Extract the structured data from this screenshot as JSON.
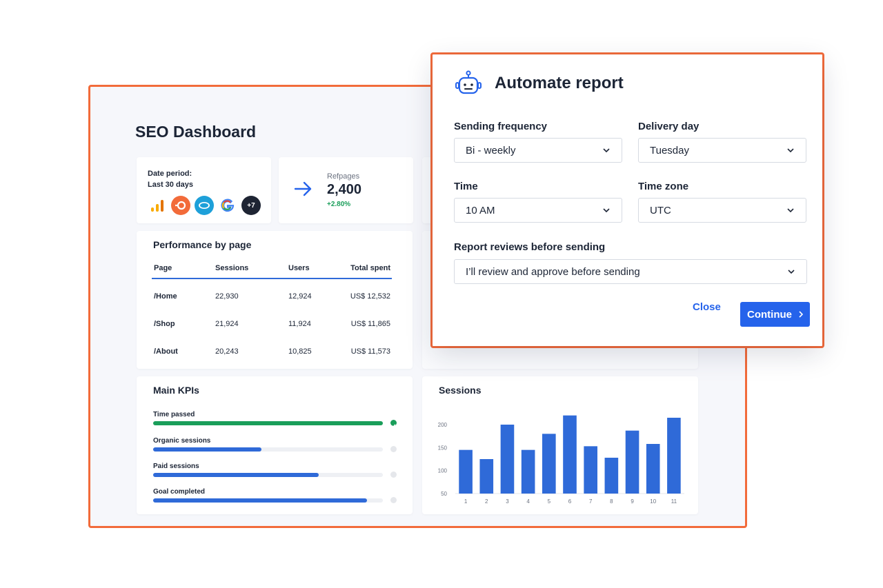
{
  "dashboard": {
    "title": "SEO Dashboard",
    "date_period": {
      "label": "Date period:",
      "value": "Last 30 days"
    },
    "sources": [
      {
        "name": "google-analytics-icon"
      },
      {
        "name": "semrush-icon"
      },
      {
        "name": "salesforce-icon"
      },
      {
        "name": "google-icon"
      },
      {
        "name": "more-sources-badge",
        "label": "+7"
      }
    ],
    "refpages": {
      "label": "Refpages",
      "value": "2,400",
      "delta": "+2.80%",
      "icon": "arrow-right-icon"
    },
    "performance": {
      "title": "Performance by page",
      "columns": [
        "Page",
        "Sessions",
        "Users",
        "Total spent"
      ],
      "rows": [
        [
          "/Home",
          "22,930",
          "12,924",
          "US$ 12,532"
        ],
        [
          "/Shop",
          "21,924",
          "11,924",
          "US$ 11,865"
        ],
        [
          "/About",
          "20,243",
          "10,825",
          "US$ 11,573"
        ]
      ]
    },
    "kpis": {
      "title": "Main KPIs",
      "items": [
        {
          "label": "Time passed",
          "progress": 1.0,
          "done": true
        },
        {
          "label": "Organic sessions",
          "progress": 0.47,
          "done": false
        },
        {
          "label": "Paid sessions",
          "progress": 0.72,
          "done": false
        },
        {
          "label": "Goal completed",
          "progress": 0.93,
          "done": false
        }
      ]
    },
    "sessions_title": "Sessions"
  },
  "chart_data": {
    "type": "bar",
    "title": "Sessions",
    "categories": [
      "1",
      "2",
      "3",
      "4",
      "5",
      "6",
      "7",
      "8",
      "9",
      "10",
      "11"
    ],
    "values": [
      145,
      125,
      200,
      145,
      180,
      220,
      153,
      128,
      187,
      158,
      215
    ],
    "yticks": [
      50,
      100,
      150,
      200
    ],
    "ylim": [
      50,
      230
    ],
    "xlabel": "",
    "ylabel": "",
    "bar_color": "#2f6ad8"
  },
  "modal": {
    "title": "Automate report",
    "icon": "robot-icon",
    "sending_frequency": {
      "label": "Sending frequency",
      "value": "Bi - weekly"
    },
    "delivery_day": {
      "label": "Delivery day",
      "value": "Tuesday"
    },
    "time": {
      "label": "Time",
      "value": "10 AM"
    },
    "time_zone": {
      "label": "Time zone",
      "value": "UTC"
    },
    "review": {
      "label": "Report reviews before sending",
      "value": "I’ll review and approve before sending"
    },
    "close_label": "Close",
    "continue_label": "Continue"
  },
  "colors": {
    "accent": "#2563eb",
    "frame": "#f26b3a",
    "success": "#1a9e5a"
  }
}
